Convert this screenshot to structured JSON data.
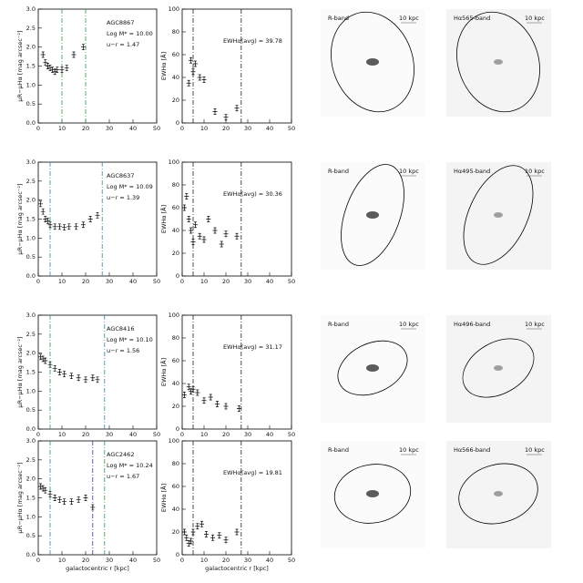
{
  "chart_data": [
    {
      "type": "scatter",
      "ylabel": "μR−μHα [mag arcsec⁻²]",
      "annotations": [
        "AGC8867",
        "Log M* = 10.00",
        "u−r = 1.47"
      ],
      "x": [
        2,
        3,
        4,
        5,
        6,
        7,
        8,
        10,
        12,
        15,
        19
      ],
      "values": [
        1.8,
        1.6,
        1.5,
        1.45,
        1.4,
        1.35,
        1.4,
        1.4,
        1.45,
        1.8,
        2.0
      ],
      "xlim": [
        0,
        50
      ],
      "ylim": [
        0,
        3
      ],
      "xticks": [
        0,
        10,
        20,
        30,
        40,
        50
      ],
      "yticks": [
        {
          "value": 0,
          "label": "0.0"
        },
        0.5,
        {
          "value": 1,
          "label": "1.0"
        },
        1.5,
        {
          "value": 2,
          "label": "2.0"
        },
        2.5,
        {
          "value": 3,
          "label": "3.0"
        }
      ],
      "vlines": [
        {
          "value": 10,
          "color": "#2a9a4a"
        },
        {
          "value": 20,
          "color": "#2a9a4a"
        }
      ]
    },
    {
      "type": "scatter",
      "ylabel": "EWHα [Å]",
      "annotations": [
        "EWHα(avg) = 39.78"
      ],
      "x": [
        3,
        4,
        5,
        6,
        8,
        10,
        15,
        20,
        25
      ],
      "values": [
        35,
        55,
        45,
        52,
        40,
        38,
        10,
        5,
        13
      ],
      "xlim": [
        0,
        50
      ],
      "ylim": [
        0,
        100
      ],
      "xticks": [
        0,
        10,
        20,
        30,
        40,
        50
      ],
      "yticks": [
        0,
        20,
        40,
        60,
        80,
        100
      ],
      "vlines": [
        {
          "value": 5,
          "color": "#222"
        },
        {
          "value": 27,
          "color": "#222"
        }
      ]
    },
    {
      "type": "scatter",
      "ylabel": "μR−μHα [mag arcsec⁻²]",
      "annotations": [
        "AGC8637",
        "Log M* = 10.09",
        "u−r = 1.39"
      ],
      "x": [
        1,
        2,
        3,
        4,
        5,
        7,
        9,
        11,
        13,
        16,
        19,
        22,
        25
      ],
      "values": [
        1.9,
        1.7,
        1.5,
        1.45,
        1.35,
        1.3,
        1.3,
        1.28,
        1.3,
        1.3,
        1.35,
        1.5,
        1.6
      ],
      "xlim": [
        0,
        50
      ],
      "ylim": [
        0,
        3
      ],
      "xticks": [
        0,
        10,
        20,
        30,
        40,
        50
      ],
      "yticks": [
        {
          "value": 0,
          "label": "0.0"
        },
        0.5,
        {
          "value": 1,
          "label": "1.0"
        },
        1.5,
        {
          "value": 2,
          "label": "2.0"
        },
        2.5,
        {
          "value": 3,
          "label": "3.0"
        }
      ],
      "vlines": [
        {
          "value": 5,
          "color": "#2a8a9a"
        },
        {
          "value": 27,
          "color": "#2a8a9a"
        }
      ]
    },
    {
      "type": "scatter",
      "ylabel": "EWHα [Å]",
      "annotations": [
        "EWHα(avg) = 30.36"
      ],
      "x": [
        1,
        2,
        3,
        4,
        5,
        6,
        8,
        10,
        12,
        15,
        18,
        20,
        25
      ],
      "values": [
        60,
        70,
        50,
        40,
        30,
        45,
        35,
        32,
        50,
        40,
        28,
        37,
        35
      ],
      "xlim": [
        0,
        50
      ],
      "ylim": [
        0,
        100
      ],
      "xticks": [
        0,
        10,
        20,
        30,
        40,
        50
      ],
      "yticks": [
        0,
        20,
        40,
        60,
        80,
        100
      ],
      "vlines": [
        {
          "value": 5,
          "color": "#222"
        },
        {
          "value": 27,
          "color": "#222"
        }
      ]
    },
    {
      "type": "scatter",
      "ylabel": "μR−μHα [mag arcsec⁻²]",
      "annotations": [
        "AGC8416",
        "Log M* = 10.10",
        "u−r = 1.56"
      ],
      "x": [
        1,
        2,
        3,
        5,
        7,
        9,
        11,
        14,
        17,
        20,
        23,
        25
      ],
      "values": [
        1.9,
        1.85,
        1.8,
        1.7,
        1.6,
        1.5,
        1.45,
        1.4,
        1.35,
        1.3,
        1.35,
        1.3
      ],
      "xlim": [
        0,
        50
      ],
      "ylim": [
        0,
        3
      ],
      "xticks": [
        0,
        10,
        20,
        30,
        40,
        50
      ],
      "yticks": [
        {
          "value": 0,
          "label": "0.0"
        },
        0.5,
        {
          "value": 1,
          "label": "1.0"
        },
        1.5,
        {
          "value": 2,
          "label": "2.0"
        },
        2.5,
        {
          "value": 3,
          "label": "3.0"
        }
      ],
      "vlines": [
        {
          "value": 5,
          "color": "#2a9a4a"
        },
        {
          "value": 28,
          "color": "#2a8a9a"
        }
      ]
    },
    {
      "type": "scatter",
      "ylabel": "EWHα [Å]",
      "annotations": [
        "EWHα(avg) = 31.17"
      ],
      "x": [
        1,
        3,
        4,
        5,
        7,
        10,
        13,
        16,
        20,
        26
      ],
      "values": [
        30,
        37,
        33,
        35,
        32,
        25,
        28,
        22,
        20,
        18
      ],
      "xlim": [
        0,
        50
      ],
      "ylim": [
        0,
        100
      ],
      "xticks": [
        0,
        10,
        20,
        30,
        40,
        50
      ],
      "yticks": [
        0,
        20,
        40,
        60,
        80,
        100
      ],
      "vlines": [
        {
          "value": 5,
          "color": "#222"
        },
        {
          "value": 27,
          "color": "#222"
        }
      ]
    },
    {
      "type": "scatter",
      "ylabel": "μR−μHα [mag arcsec⁻²]",
      "xlabel": "galactocentric r [kpc]",
      "annotations": [
        "AGC2462",
        "Log M* = 10.24",
        "u−r = 1.67"
      ],
      "x": [
        1,
        2,
        3,
        5,
        7,
        9,
        11,
        14,
        17,
        20,
        23
      ],
      "values": [
        1.8,
        1.75,
        1.7,
        1.6,
        1.5,
        1.45,
        1.4,
        1.4,
        1.45,
        1.5,
        1.25
      ],
      "xlim": [
        0,
        50
      ],
      "ylim": [
        0,
        3
      ],
      "xticks": [
        0,
        10,
        20,
        30,
        40,
        50
      ],
      "yticks": [
        {
          "value": 0,
          "label": "0.0"
        },
        0.5,
        {
          "value": 1,
          "label": "1.0"
        },
        1.5,
        {
          "value": 2,
          "label": "2.0"
        },
        2.5,
        {
          "value": 3,
          "label": "3.0"
        }
      ],
      "vlines": [
        {
          "value": 5,
          "color": "#2a8a9a"
        },
        {
          "value": 23,
          "color": "#2a3a9a"
        },
        {
          "value": 28,
          "color": "#2a9a4a"
        }
      ]
    },
    {
      "type": "scatter",
      "ylabel": "EWHα [Å]",
      "xlabel": "galactocentric r [kpc]",
      "annotations": [
        "EWHα(avg) = 19.81"
      ],
      "x": [
        1,
        2,
        3,
        4,
        5,
        7,
        9,
        11,
        14,
        17,
        20,
        25
      ],
      "values": [
        20,
        15,
        10,
        12,
        20,
        25,
        27,
        18,
        15,
        17,
        13,
        20
      ],
      "xlim": [
        0,
        50
      ],
      "ylim": [
        0,
        100
      ],
      "xticks": [
        0,
        10,
        20,
        30,
        40,
        50
      ],
      "yticks": [
        0,
        20,
        40,
        60,
        80,
        100
      ],
      "vlines": [
        {
          "value": 5,
          "color": "#222"
        },
        {
          "value": 27,
          "color": "#222"
        }
      ]
    }
  ],
  "images": [
    {
      "r_label": "R-band",
      "r_scale": "10 kpc",
      "ha_label": "Hα565-band",
      "ha_scale": "10 kpc"
    },
    {
      "r_label": "R-band",
      "r_scale": "10 kpc",
      "ha_label": "Hα495-band",
      "ha_scale": "10 kpc"
    },
    {
      "r_label": "R-band",
      "r_scale": "10 kpc",
      "ha_label": "Hα496-band",
      "ha_scale": "10 kpc"
    },
    {
      "r_label": "R-band",
      "r_scale": "10 kpc",
      "ha_label": "Hα566-band",
      "ha_scale": "10 kpc"
    }
  ]
}
